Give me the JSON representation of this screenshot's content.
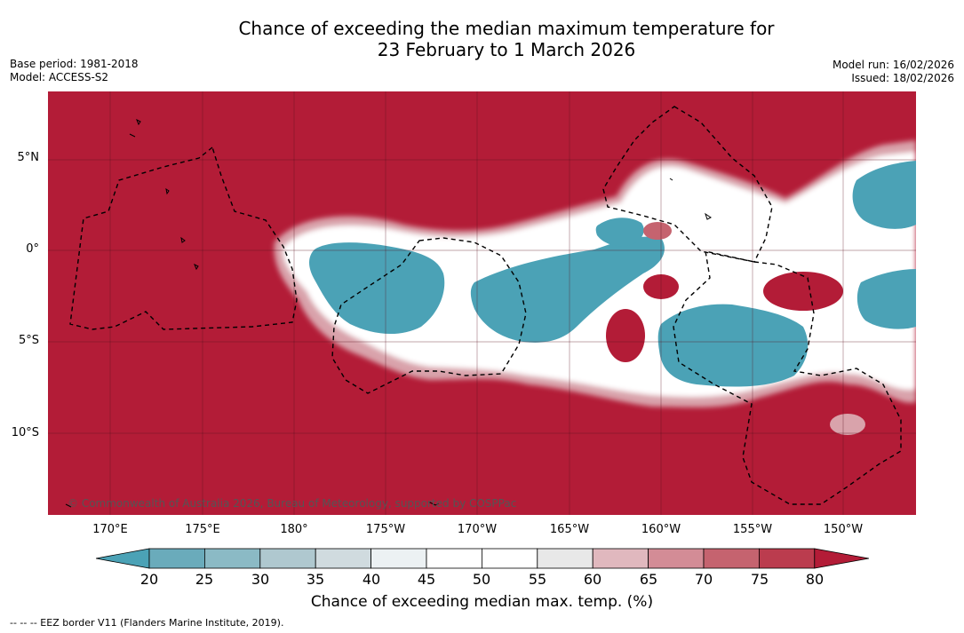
{
  "title": {
    "line1": "Chance of exceeding the median maximum temperature for",
    "line2": "23 February to 1 March 2026"
  },
  "meta": {
    "base_period": "Base period: 1981-2018",
    "model": "Model: ACCESS-S2",
    "model_run": "Model run: 16/02/2026",
    "issued": "Issued: 18/02/2026"
  },
  "map": {
    "copyright": "© Commonwealth of Australia 2026, Bureau of Meteorology, supported by COSPPac",
    "lat_labels": [
      "5°N",
      "0°",
      "5°S",
      "10°S"
    ],
    "lon_labels": [
      "170°E",
      "175°E",
      "180°",
      "175°W",
      "170°W",
      "165°W",
      "160°W",
      "155°W",
      "150°W"
    ]
  },
  "colorbar": {
    "ticks": [
      "20",
      "25",
      "30",
      "35",
      "40",
      "45",
      "50",
      "55",
      "60",
      "65",
      "70",
      "75",
      "80"
    ],
    "title": "Chance of exceeding median max. temp. (%)",
    "colors": [
      "#4ba2b6",
      "#6aabbb",
      "#8bbac5",
      "#afc8cf",
      "#d0dbdf",
      "#ecf1f3",
      "#ffffff",
      "#ffffff",
      "#e8e8e8",
      "#e0b8be",
      "#d38c96",
      "#c5636f",
      "#bb3c4e",
      "#b31c37"
    ]
  },
  "footnote": "--  --  -- EEZ border V11 (Flanders Marine Institute, 2019)."
}
